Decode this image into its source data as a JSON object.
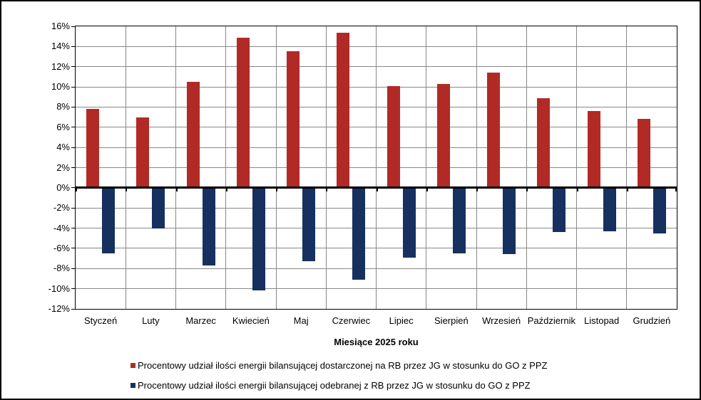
{
  "chart_data": {
    "type": "bar",
    "title": "",
    "xlabel": "Miesiące 2025 roku",
    "ylabel": "",
    "categories": [
      "Styczeń",
      "Luty",
      "Marzec",
      "Kwiecień",
      "Maj",
      "Czerwiec",
      "Lipiec",
      "Sierpień",
      "Wrzesień",
      "Październik",
      "Listopad",
      "Grudzień"
    ],
    "series": [
      {
        "name": "Procentowy udział ilości energii bilansującej dostarczonej na RB przez JG w stosunku do GO z PPZ",
        "color": "#B22A25",
        "values": [
          7.8,
          7.0,
          10.5,
          14.9,
          13.5,
          15.4,
          10.1,
          10.3,
          11.4,
          8.9,
          7.6,
          6.8
        ]
      },
      {
        "name": "Procentowy udział ilości energii bilansującej odebranej z RB przez JG w stosunku do GO z PPZ",
        "color": "#16305F",
        "values": [
          -6.5,
          -4.0,
          -7.7,
          -10.2,
          -7.3,
          -9.1,
          -6.9,
          -6.5,
          -6.6,
          -4.4,
          -4.3,
          -4.5
        ]
      }
    ],
    "ylim": [
      -12,
      16
    ],
    "y_tick_step": 2,
    "y_tick_labels": [
      "16%",
      "14%",
      "12%",
      "10%",
      "8%",
      "6%",
      "4%",
      "2%",
      "0%",
      "-2%",
      "-4%",
      "-6%",
      "-8%",
      "-10%",
      "-12%"
    ],
    "grid": true,
    "gridline_color": "#888888",
    "axis_color": "#000000",
    "legend_position": "bottom"
  }
}
